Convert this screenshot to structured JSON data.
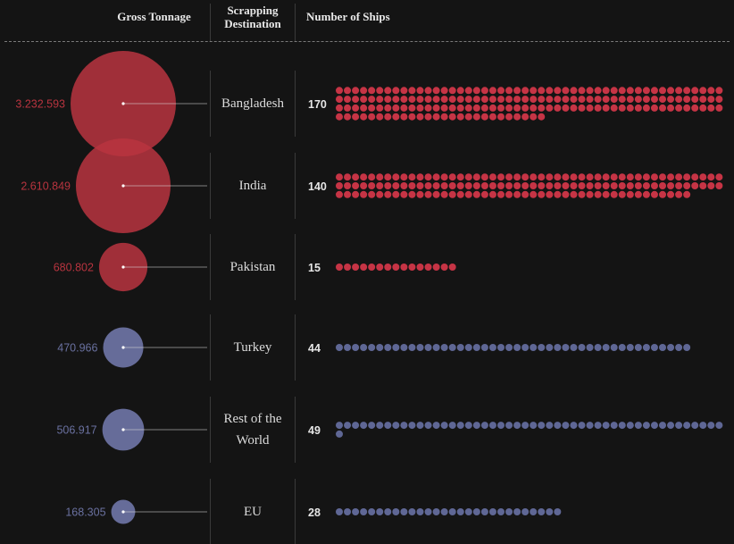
{
  "headers": {
    "gross_tonnage": "Gross Tonnage",
    "scrapping_destination": "Scrapping Destination",
    "number_of_ships": "Number of Ships"
  },
  "colors": {
    "south_asia": "#b8343f",
    "south_asia_dots": "#c63445",
    "other": "#6a71a0",
    "other_dots": "#5f6795",
    "background": "#141414"
  },
  "chart_data": {
    "type": "bubble-and-dot-matrix",
    "columns": [
      "Gross Tonnage",
      "Scrapping Destination",
      "Number of Ships"
    ],
    "rows": [
      {
        "destination": "Bangladesh",
        "gross_tonnage": 3232593,
        "gross_tonnage_label": "3.232.593",
        "ships": 170,
        "ships_label": "170",
        "group": "south_asia"
      },
      {
        "destination": "India",
        "gross_tonnage": 2610849,
        "gross_tonnage_label": "2.610.849",
        "ships": 140,
        "ships_label": "140",
        "group": "south_asia"
      },
      {
        "destination": "Pakistan",
        "gross_tonnage": 680802,
        "gross_tonnage_label": "680.802",
        "ships": 15,
        "ships_label": "15",
        "group": "south_asia"
      },
      {
        "destination": "Turkey",
        "gross_tonnage": 470966,
        "gross_tonnage_label": "470.966",
        "ships": 44,
        "ships_label": "44",
        "group": "other"
      },
      {
        "destination": "Rest of the World",
        "gross_tonnage": 506917,
        "gross_tonnage_label": "506.917",
        "ships": 49,
        "ships_label": "49",
        "group": "other"
      },
      {
        "destination": "EU",
        "gross_tonnage": 168305,
        "gross_tonnage_label": "168.305",
        "ships": 28,
        "ships_label": "28",
        "group": "other"
      }
    ]
  }
}
